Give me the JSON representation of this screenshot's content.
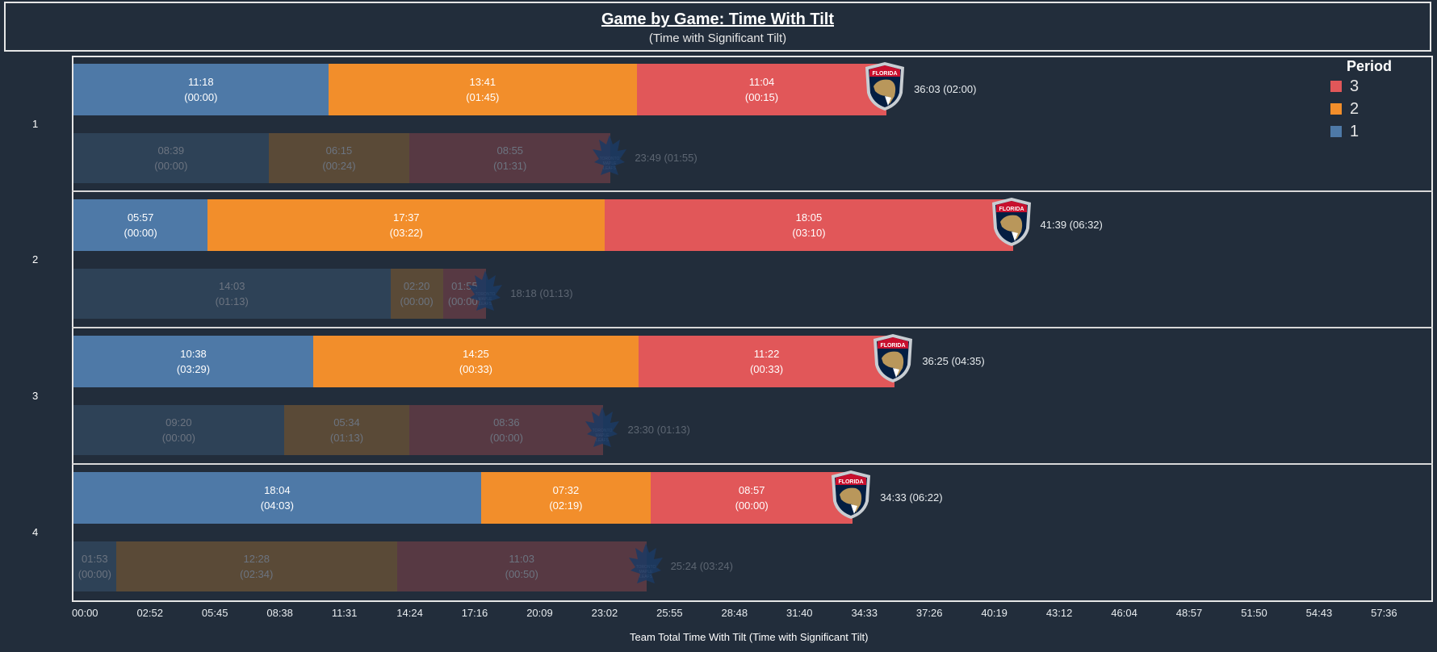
{
  "title": "Game by Game: Time With Tilt",
  "subtitle": "(Time with Significant Tilt)",
  "chart_data": {
    "type": "bar",
    "orientation": "horizontal",
    "stacked": true,
    "xlabel": "Team Total Time With Tilt (Time with Significant Tilt)",
    "x_ticks": [
      "00:00",
      "02:52",
      "05:45",
      "08:38",
      "11:31",
      "14:24",
      "17:16",
      "20:09",
      "23:02",
      "25:55",
      "28:48",
      "31:40",
      "34:33",
      "37:26",
      "40:19",
      "43:12",
      "46:04",
      "48:57",
      "51:50",
      "54:43",
      "57:36"
    ],
    "legend": {
      "title": "Period",
      "placement": "top-right",
      "items": [
        {
          "label": "3",
          "color": "#e15759"
        },
        {
          "label": "2",
          "color": "#f28e2b"
        },
        {
          "label": "1",
          "color": "#4e79a7"
        }
      ]
    },
    "teams": {
      "florida": {
        "logo": "florida-panthers-logo",
        "colors": {
          "1": "#4e79a7",
          "2": "#f28e2b",
          "3": "#e15759"
        }
      },
      "toronto": {
        "logo": "toronto-maple-leafs-logo",
        "colors": {
          "1": "#2e4257",
          "2": "#5a4a37",
          "3": "#573943"
        }
      }
    },
    "games": [
      {
        "game": "1",
        "florida": {
          "periods": [
            {
              "time": "11:18",
              "significant": "(00:00)"
            },
            {
              "time": "13:41",
              "significant": "(01:45)"
            },
            {
              "time": "11:04",
              "significant": "(00:15)"
            }
          ],
          "total": "36:03 (02:00)"
        },
        "toronto": {
          "periods": [
            {
              "time": "08:39",
              "significant": "(00:00)"
            },
            {
              "time": "06:15",
              "significant": "(00:24)"
            },
            {
              "time": "08:55",
              "significant": "(01:31)"
            }
          ],
          "total": "23:49 (01:55)"
        }
      },
      {
        "game": "2",
        "florida": {
          "periods": [
            {
              "time": "05:57",
              "significant": "(00:00)"
            },
            {
              "time": "17:37",
              "significant": "(03:22)"
            },
            {
              "time": "18:05",
              "significant": "(03:10)"
            }
          ],
          "total": "41:39 (06:32)"
        },
        "toronto": {
          "periods": [
            {
              "time": "14:03",
              "significant": "(01:13)"
            },
            {
              "time": "02:20",
              "significant": "(00:00)"
            },
            {
              "time": "01:55",
              "significant": "(00:00)"
            }
          ],
          "total": "18:18 (01:13)"
        }
      },
      {
        "game": "3",
        "florida": {
          "periods": [
            {
              "time": "10:38",
              "significant": "(03:29)"
            },
            {
              "time": "14:25",
              "significant": "(00:33)"
            },
            {
              "time": "11:22",
              "significant": "(00:33)"
            }
          ],
          "total": "36:25 (04:35)"
        },
        "toronto": {
          "periods": [
            {
              "time": "09:20",
              "significant": "(00:00)"
            },
            {
              "time": "05:34",
              "significant": "(01:13)"
            },
            {
              "time": "08:36",
              "significant": "(00:00)"
            }
          ],
          "total": "23:30 (01:13)"
        }
      },
      {
        "game": "4",
        "florida": {
          "periods": [
            {
              "time": "18:04",
              "significant": "(04:03)"
            },
            {
              "time": "07:32",
              "significant": "(02:19)"
            },
            {
              "time": "08:57",
              "significant": "(00:00)"
            }
          ],
          "total": "34:33 (06:22)"
        },
        "toronto": {
          "periods": [
            {
              "time": "01:53",
              "significant": "(00:00)"
            },
            {
              "time": "12:28",
              "significant": "(02:34)"
            },
            {
              "time": "11:03",
              "significant": "(00:50)"
            }
          ],
          "total": "25:24 (03:24)"
        }
      }
    ]
  }
}
